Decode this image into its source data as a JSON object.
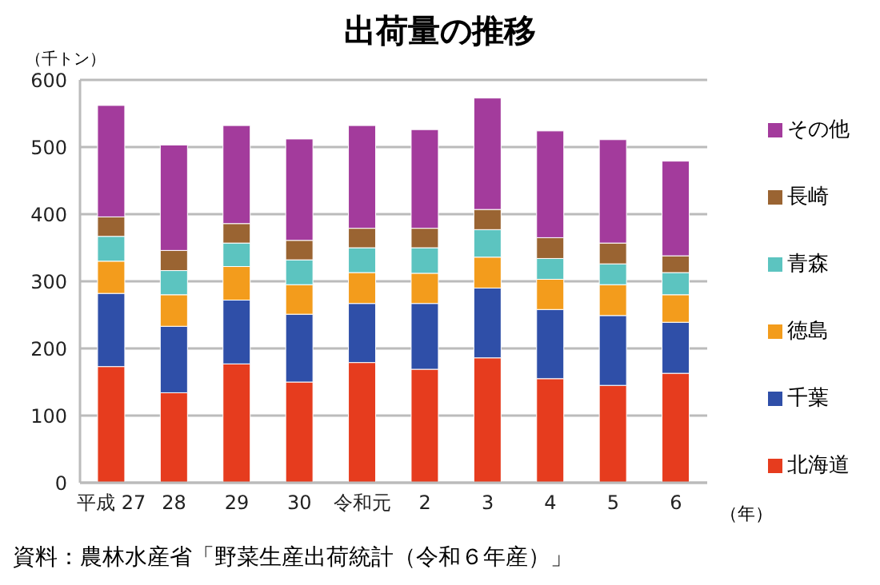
{
  "chart_data": {
    "type": "bar",
    "title": "出荷量の推移",
    "ylabel": "（千トン）",
    "xlabel": "（年）",
    "categories": [
      "平成 27",
      "28",
      "29",
      "30",
      "令和元",
      "2",
      "3",
      "4",
      "5",
      "6"
    ],
    "stacked": true,
    "ylim": [
      0,
      600
    ],
    "yticks": [
      0,
      100,
      200,
      300,
      400,
      500,
      600
    ],
    "grid": "y",
    "legend": "right",
    "annotations": [
      "資料：農林水産省「野菜生産出荷統計（令和６年産）」"
    ],
    "series": [
      {
        "name": "北海道",
        "color": "#e63c1e",
        "values": [
          173,
          134,
          177,
          150,
          179,
          169,
          186,
          155,
          145,
          163
        ]
      },
      {
        "name": "千葉",
        "color": "#2f4fa8",
        "values": [
          109,
          99,
          95,
          101,
          88,
          98,
          104,
          103,
          104,
          76
        ]
      },
      {
        "name": "徳島",
        "color": "#f39c1c",
        "values": [
          48,
          47,
          50,
          44,
          46,
          45,
          46,
          45,
          46,
          41
        ]
      },
      {
        "name": "青森",
        "color": "#5cc4c0",
        "values": [
          37,
          36,
          35,
          37,
          37,
          38,
          41,
          31,
          31,
          33
        ]
      },
      {
        "name": "長崎",
        "color": "#9a6432",
        "values": [
          29,
          30,
          29,
          29,
          29,
          29,
          30,
          31,
          31,
          25
        ]
      },
      {
        "name": "その他",
        "color": "#a33b9c",
        "values": [
          166,
          157,
          146,
          151,
          153,
          147,
          166,
          159,
          154,
          141
        ]
      }
    ]
  }
}
